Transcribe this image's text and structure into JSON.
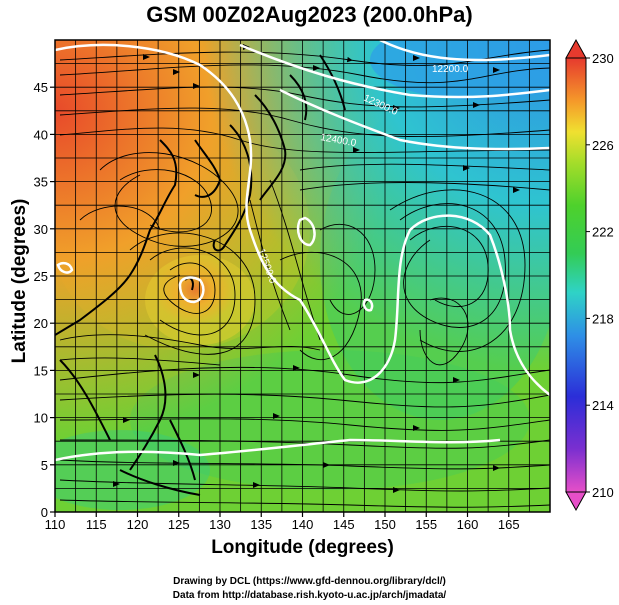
{
  "title": "GSM 00Z02Aug2023 (200.0hPa)",
  "xlabel": "Longitude (degrees)",
  "ylabel": "Latitude  (degrees)",
  "credits": [
    "Drawing by DCL (https://www.gfd-dennou.org/library/dcl/)",
    "Data from http://database.rish.kyoto-u.ac.jp/arch/jmadata/"
  ],
  "chart_data": {
    "type": "heatmap",
    "xlim": [
      110,
      170
    ],
    "ylim": [
      0,
      50
    ],
    "x_ticks": [
      110,
      115,
      120,
      125,
      130,
      135,
      140,
      145,
      150,
      155,
      160,
      165
    ],
    "y_ticks": [
      0,
      5,
      10,
      15,
      20,
      25,
      30,
      35,
      40,
      45
    ],
    "colorbar": {
      "min": 210,
      "max": 230,
      "ticks": [
        210,
        214,
        218,
        222,
        226,
        230
      ]
    },
    "contour_labels": [
      "12200.0",
      "12300.0",
      "12400.0",
      "12500.0"
    ],
    "grid": true
  }
}
